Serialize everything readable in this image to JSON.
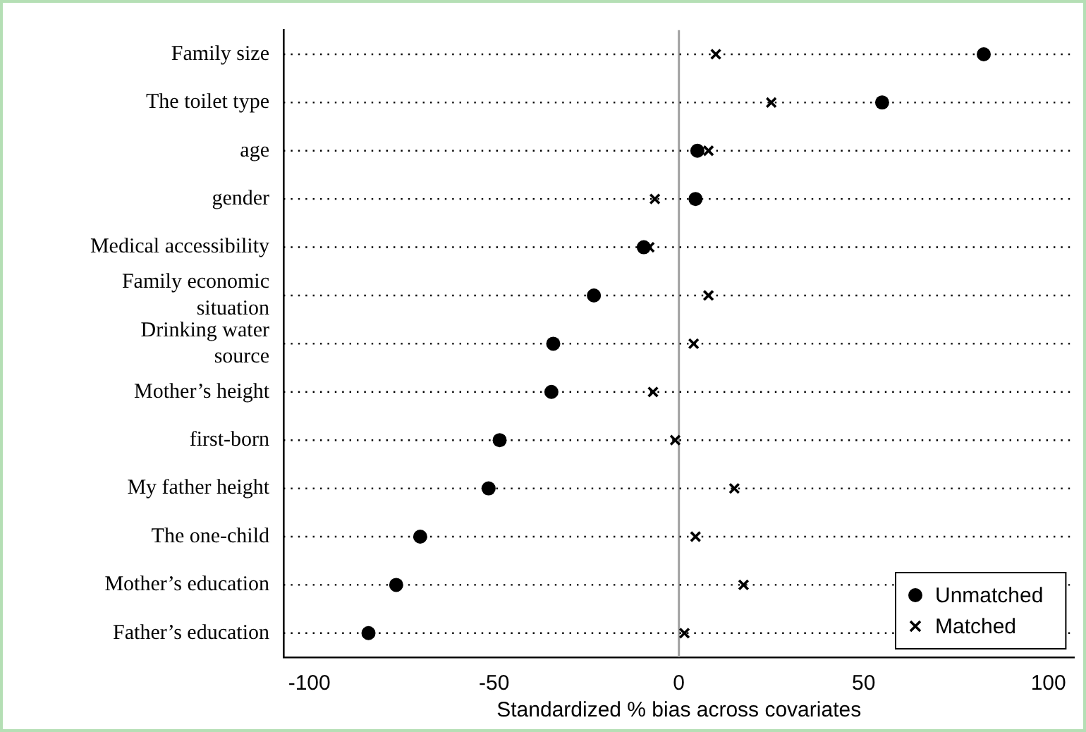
{
  "chart_data": {
    "type": "scatter",
    "xlabel": "Standardized % bias across covariates",
    "categories": [
      "Family size",
      "The toilet type",
      "age",
      "gender",
      "Medical accessibility",
      "Family economic situation",
      "Drinking water source",
      "Mother’s height",
      "first-born",
      "My father height",
      "The one-child",
      "Mother’s education",
      "Father’s education"
    ],
    "series": [
      {
        "name": "Unmatched",
        "color": "#000000",
        "marker": "circle",
        "values": [
          82.5,
          55,
          5,
          4.5,
          -9.5,
          -23,
          -34,
          -34.5,
          -48.5,
          -51.5,
          -70,
          -76.5,
          -84
        ]
      },
      {
        "name": "Matched",
        "color": "#000000",
        "marker": "cross",
        "values": [
          10,
          25,
          8,
          -6.5,
          -8,
          8,
          4,
          -7,
          -1,
          15,
          4.5,
          17.5,
          1.5
        ]
      }
    ],
    "xlim": [
      -107,
      107
    ],
    "xticks": [
      -100,
      -50,
      0,
      50,
      100
    ],
    "ref_lines": [
      {
        "axis": "x",
        "value": 0,
        "color": "#a0a0a0"
      }
    ],
    "orientation": "horizontal",
    "grid": "y",
    "legend": "bottom right"
  }
}
